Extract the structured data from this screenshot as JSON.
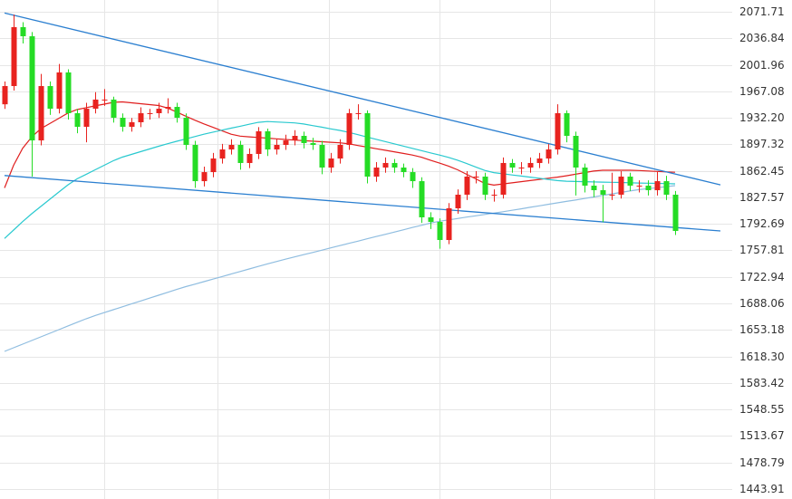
{
  "chart_data": {
    "type": "candlestick",
    "categories": [
      null,
      null,
      null,
      null,
      null,
      null,
      null,
      null,
      null,
      null,
      null,
      null,
      null,
      null,
      null,
      null,
      null,
      null,
      null,
      null,
      null,
      null,
      null,
      null,
      null,
      null,
      null,
      null,
      null,
      null,
      null,
      null,
      null,
      null,
      null,
      null,
      null,
      null,
      null,
      null,
      null,
      null,
      null,
      null,
      null,
      null,
      null,
      null,
      null,
      null,
      null,
      null,
      null,
      null,
      null,
      null,
      null,
      null,
      null,
      null,
      null,
      null,
      null,
      null,
      null,
      null,
      null,
      null,
      null,
      null,
      null,
      null,
      null,
      null,
      null
    ],
    "open": [
      1950.0,
      1974.0,
      2051.5,
      2039.5,
      1902.5,
      1974.0,
      1944.2,
      1991.9,
      1938.3,
      1920.4,
      1944.2,
      1956.2,
      1956.2,
      1932.3,
      1920.4,
      1926.4,
      1938.3,
      1938.3,
      1944.2,
      1946.6,
      1932.3,
      1896.6,
      1848.9,
      1860.8,
      1878.7,
      1890.6,
      1896.6,
      1872.8,
      1884.7,
      1914.5,
      1890.6,
      1896.6,
      1902.5,
      1908.5,
      1899.0,
      1896.6,
      1866.8,
      1878.7,
      1896.6,
      1938.3,
      1938.3,
      1854.9,
      1866.8,
      1872.8,
      1866.8,
      1860.8,
      1848.9,
      1801.3,
      1795.3,
      1771.5,
      1813.2,
      1831.1,
      1854.9,
      1854.9,
      1831.1,
      1831.1,
      1872.8,
      1866.8,
      1866.8,
      1872.8,
      1878.7,
      1890.6,
      1938.3,
      1908.5,
      1866.8,
      1843.0,
      1837.0,
      1831.1,
      1831.1,
      1854.9,
      1843.0,
      1843.0,
      1837.0,
      1848.9,
      1831.1
    ],
    "high": [
      1980.0,
      2068.0,
      2058.0,
      2045.0,
      1990.0,
      1980.0,
      2003.0,
      1996.0,
      1944.0,
      1952.0,
      1966.0,
      1970.0,
      1960.0,
      1938.0,
      1932.0,
      1946.0,
      1944.0,
      1952.0,
      1958.0,
      1952.0,
      1938.0,
      1902.0,
      1868.0,
      1886.0,
      1898.0,
      1904.0,
      1902.0,
      1892.0,
      1920.0,
      1918.0,
      1904.0,
      1910.0,
      1916.0,
      1914.0,
      1906.0,
      1902.0,
      1886.0,
      1904.0,
      1944.0,
      1950.0,
      1942.0,
      1874.0,
      1880.0,
      1878.0,
      1872.0,
      1866.0,
      1854.0,
      1808.0,
      1800.0,
      1820.0,
      1838.0,
      1862.0,
      1862.0,
      1860.0,
      1838.0,
      1880.0,
      1878.0,
      1874.0,
      1880.0,
      1886.0,
      1898.0,
      1950.0,
      1942.0,
      1914.0,
      1872.0,
      1850.0,
      1844.0,
      1860.0,
      1862.0,
      1860.0,
      1850.0,
      1850.0,
      1862.0,
      1856.0,
      1836.0
    ],
    "low": [
      1944.0,
      1968.0,
      2030.0,
      1854.9,
      1896.0,
      1936.0,
      1938.0,
      1930.0,
      1912.0,
      1900.0,
      1938.0,
      1948.0,
      1926.0,
      1914.0,
      1914.0,
      1920.0,
      1930.0,
      1932.0,
      1938.0,
      1926.0,
      1890.0,
      1840.0,
      1842.0,
      1854.0,
      1872.0,
      1884.0,
      1864.0,
      1866.0,
      1878.0,
      1882.0,
      1884.0,
      1890.0,
      1896.0,
      1892.0,
      1890.0,
      1858.0,
      1860.0,
      1872.0,
      1890.0,
      1930.0,
      1846.0,
      1848.0,
      1860.0,
      1860.0,
      1854.0,
      1840.0,
      1794.0,
      1786.0,
      1760.0,
      1766.0,
      1806.0,
      1824.0,
      1846.0,
      1824.0,
      1822.0,
      1826.0,
      1860.0,
      1858.0,
      1860.0,
      1866.0,
      1872.0,
      1884.0,
      1900.0,
      1830.0,
      1834.0,
      1828.0,
      1795.0,
      1824.0,
      1826.0,
      1836.0,
      1834.0,
      1830.0,
      1830.0,
      1824.0,
      1778.0
    ],
    "close": [
      1974.0,
      2051.5,
      2039.5,
      1902.5,
      1974.0,
      1944.2,
      1991.9,
      1938.3,
      1920.4,
      1944.2,
      1956.2,
      1956.2,
      1932.3,
      1920.4,
      1926.4,
      1938.3,
      1938.3,
      1944.2,
      1946.6,
      1932.3,
      1896.6,
      1848.9,
      1860.8,
      1878.7,
      1890.6,
      1896.6,
      1872.8,
      1884.7,
      1914.5,
      1890.6,
      1896.6,
      1902.5,
      1908.5,
      1899.0,
      1896.6,
      1866.8,
      1878.7,
      1896.6,
      1938.3,
      1938.3,
      1854.9,
      1866.8,
      1872.8,
      1866.8,
      1860.8,
      1848.9,
      1801.3,
      1795.3,
      1771.5,
      1813.2,
      1831.1,
      1854.9,
      1854.9,
      1831.1,
      1831.1,
      1872.8,
      1866.8,
      1866.8,
      1872.8,
      1878.7,
      1890.6,
      1938.3,
      1908.5,
      1866.8,
      1843.0,
      1837.0,
      1831.1,
      1831.1,
      1854.9,
      1843.0,
      1843.0,
      1837.0,
      1848.9,
      1831.1,
      1783.4
    ],
    "up_color": "#e8231f",
    "down_color": "#25dc25",
    "lines": [
      {
        "color": "#e01e1e",
        "values": [
          1840.0,
          1869.8,
          1892.2,
          1907.0,
          1917.9,
          1924.7,
          1931.6,
          1938.5,
          1943.1,
          1945.5,
          1947.9,
          1950.2,
          1952.6,
          1953.2,
          1952.0,
          1950.8,
          1949.6,
          1948.4,
          1945.1,
          1939.8,
          1934.4,
          1929.1,
          1924.2,
          1919.7,
          1915.2,
          1910.7,
          1908.1,
          1907.2,
          1906.4,
          1905.5,
          1904.6,
          1903.8,
          1902.9,
          1902.2,
          1901.5,
          1900.8,
          1900.0,
          1899.3,
          1898.0,
          1895.8,
          1893.7,
          1891.6,
          1889.6,
          1887.5,
          1885.4,
          1883.3,
          1880.4,
          1876.5,
          1872.6,
          1868.7,
          1863.8,
          1857.9,
          1851.9,
          1846.0,
          1843.7,
          1845.2,
          1846.7,
          1848.2,
          1849.7,
          1851.2,
          1852.7,
          1854.2,
          1856.0,
          1858.0,
          1860.1,
          1862.2,
          1863.2,
          1863.2,
          1863.2,
          1863.2,
          1862.9,
          1862.3,
          1861.7,
          1861.1,
          1860.6
        ]
      },
      {
        "color": "#29c9cf",
        "values": [
          1773.5,
          1784.6,
          1795.7,
          1806.1,
          1815.6,
          1825.1,
          1834.6,
          1844.1,
          1851.9,
          1857.8,
          1863.8,
          1869.8,
          1875.7,
          1880.5,
          1884.1,
          1887.7,
          1891.2,
          1894.8,
          1898.2,
          1901.3,
          1904.4,
          1907.5,
          1910.6,
          1913.4,
          1916.0,
          1918.6,
          1921.1,
          1923.7,
          1926.3,
          1927.3,
          1926.7,
          1926.1,
          1925.5,
          1924.1,
          1922.0,
          1919.9,
          1917.7,
          1915.6,
          1913.0,
          1910.0,
          1907.0,
          1904.0,
          1901.0,
          1898.0,
          1895.1,
          1892.1,
          1889.1,
          1886.1,
          1883.2,
          1880.2,
          1876.5,
          1872.0,
          1867.5,
          1863.0,
          1860.1,
          1858.6,
          1857.1,
          1855.6,
          1854.2,
          1852.7,
          1851.2,
          1849.7,
          1848.8,
          1848.5,
          1848.2,
          1847.9,
          1847.6,
          1847.4,
          1847.1,
          1846.8,
          1846.5,
          1846.2,
          1846.0,
          1845.7,
          1845.4
        ]
      },
      {
        "color": "#8fbde0",
        "values": [
          1625.0,
          1629.8,
          1634.5,
          1639.3,
          1644.1,
          1648.8,
          1653.6,
          1658.4,
          1663.2,
          1667.9,
          1672.2,
          1676.0,
          1679.8,
          1683.6,
          1687.4,
          1691.2,
          1695.0,
          1698.8,
          1702.7,
          1706.5,
          1710.1,
          1713.4,
          1716.7,
          1720.1,
          1723.4,
          1726.7,
          1730.0,
          1733.4,
          1736.7,
          1740.0,
          1743.2,
          1746.2,
          1749.2,
          1752.2,
          1755.1,
          1758.1,
          1761.1,
          1764.1,
          1767.1,
          1770.0,
          1773.0,
          1776.0,
          1778.9,
          1781.9,
          1784.9,
          1787.9,
          1790.8,
          1793.8,
          1796.2,
          1798.0,
          1799.8,
          1801.6,
          1803.3,
          1805.1,
          1806.9,
          1808.7,
          1810.6,
          1812.5,
          1814.5,
          1816.4,
          1818.4,
          1820.3,
          1822.3,
          1824.1,
          1826.1,
          1828.1,
          1830.1,
          1832.1,
          1834.1,
          1836.0,
          1837.7,
          1839.0,
          1840.3,
          1841.7,
          1843.0
        ]
      }
    ],
    "trendlines": [
      {
        "color": "#2b7fd0",
        "values": [
          2070.0,
          1858.4
        ]
      },
      {
        "color": "#2b7fd0",
        "values": [
          1856.3,
          1788.0
        ]
      }
    ],
    "ylim": [
      1430.8,
      2087.2
    ],
    "yticks": [
      2071.71,
      2036.84,
      2001.96,
      1967.08,
      {
        "value": 1932.2,
        "label": "1932.20"
      },
      1897.32,
      1862.45,
      1827.57,
      1792.69,
      1757.81,
      1722.94,
      1688.06,
      1653.18,
      {
        "value": 1618.3,
        "label": "1618.30"
      },
      1583.42,
      1548.55,
      1513.67,
      1478.79,
      1443.91
    ],
    "grid": true
  }
}
